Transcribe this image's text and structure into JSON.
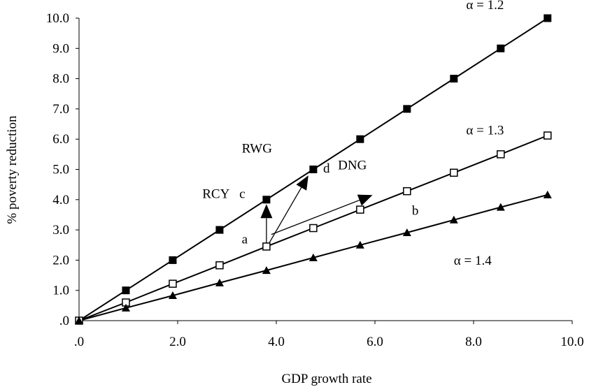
{
  "chart_data": {
    "type": "line",
    "xlabel": "GDP growth rate",
    "ylabel": "% poverty reduction",
    "xlim": [
      0,
      10
    ],
    "ylim": [
      0,
      10
    ],
    "x_ticks": [
      ".0",
      "2.0",
      "4.0",
      "6.0",
      "8.0",
      "10.0"
    ],
    "y_ticks": [
      ".0",
      "1.0",
      "2.0",
      "3.0",
      "4.0",
      "5.0",
      "6.0",
      "7.0",
      "8.0",
      "9.0",
      "10.0"
    ],
    "grid": false,
    "legend": "none",
    "series": [
      {
        "name": "α = 1.2",
        "marker": "filled-square",
        "x": [
          0,
          0.95,
          1.9,
          2.85,
          3.8,
          4.75,
          5.7,
          6.65,
          7.6,
          8.55,
          9.5
        ],
        "y": [
          0,
          1,
          2,
          3,
          4,
          5,
          6,
          7,
          8,
          9,
          10
        ]
      },
      {
        "name": "α = 1.3",
        "marker": "open-square",
        "x": [
          0,
          0.95,
          1.9,
          2.85,
          3.8,
          4.75,
          5.7,
          6.65,
          7.6,
          8.55,
          9.5
        ],
        "y": [
          0,
          0.6,
          1.22,
          1.83,
          2.45,
          3.06,
          3.67,
          4.28,
          4.89,
          5.5,
          6.12
        ]
      },
      {
        "name": "α = 1.4",
        "marker": "filled-triangle",
        "x": [
          0,
          0.95,
          1.9,
          2.85,
          3.8,
          4.75,
          5.7,
          6.65,
          7.6,
          8.55,
          9.5
        ],
        "y": [
          0,
          0.42,
          0.83,
          1.25,
          1.66,
          2.08,
          2.5,
          2.91,
          3.33,
          3.75,
          4.16
        ]
      }
    ],
    "arrows": [
      {
        "label": "RCY",
        "from": [
          3.8,
          2.45
        ],
        "to": [
          3.8,
          3.85
        ]
      },
      {
        "label": "RWG",
        "from": [
          3.85,
          2.55
        ],
        "to": [
          4.65,
          4.8
        ]
      },
      {
        "label": "DNG",
        "from": [
          3.9,
          2.85
        ],
        "to": [
          5.95,
          4.15
        ]
      }
    ],
    "annotations": [
      {
        "text": "RCY",
        "x": 2.5,
        "y": 4.05
      },
      {
        "text": "c",
        "x": 3.25,
        "y": 4.05
      },
      {
        "text": "RWG",
        "x": 3.3,
        "y": 5.55
      },
      {
        "text": "d",
        "x": 4.95,
        "y": 4.9
      },
      {
        "text": "DNG",
        "x": 5.25,
        "y": 5.0
      },
      {
        "text": "a",
        "x": 3.3,
        "y": 2.55
      },
      {
        "text": "b",
        "x": 6.75,
        "y": 3.5
      },
      {
        "text": "α = 1.2",
        "x": 7.85,
        "y": 10.3
      },
      {
        "text": "α = 1.3",
        "x": 7.85,
        "y": 6.15
      },
      {
        "text": "α = 1.4",
        "x": 7.6,
        "y": 1.85
      }
    ]
  }
}
